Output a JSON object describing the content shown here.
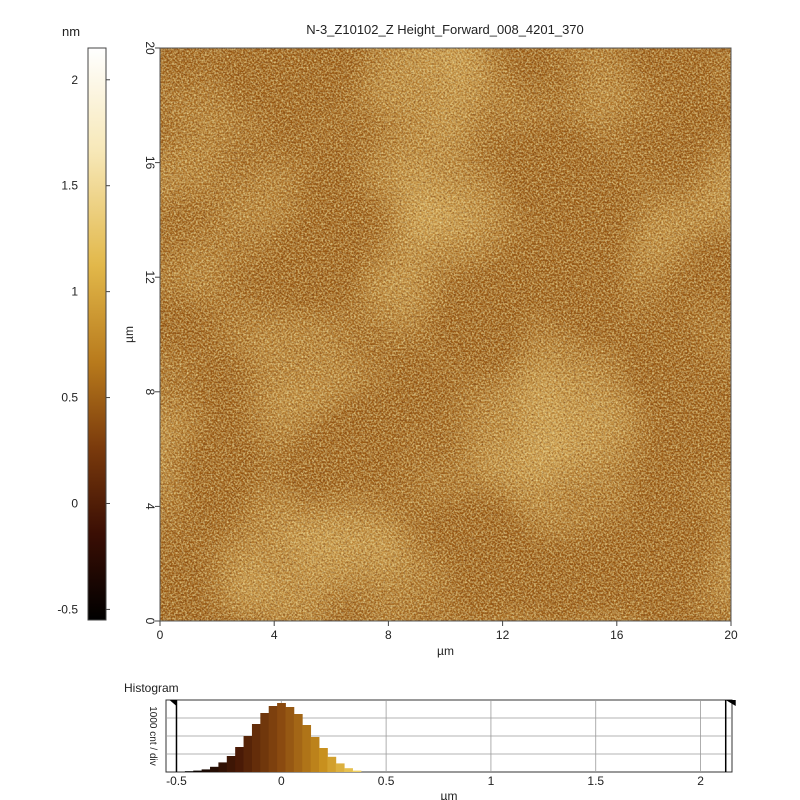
{
  "chart_data": [
    {
      "type": "heatmap",
      "title": "N-3_Z10102_Z Height_Forward_008_4201_370",
      "xlabel": "µm",
      "ylabel": "µm",
      "x_ticks": [
        "0",
        "4",
        "8",
        "12",
        "16",
        "20"
      ],
      "y_ticks": [
        "0",
        "4",
        "8",
        "12",
        "16",
        "20"
      ],
      "xlim": [
        0,
        20
      ],
      "ylim": [
        0,
        20
      ],
      "colorbar": {
        "unit": "nm",
        "range": [
          -0.55,
          2.15
        ],
        "ticks": [
          "-0.5",
          "0",
          "0.5",
          "1",
          "1.5",
          "2"
        ],
        "tick_values": [
          -0.5,
          0,
          0.5,
          1,
          1.5,
          2
        ],
        "colormap": [
          "#000000",
          "#3a0e04",
          "#7a3a0c",
          "#b87a1c",
          "#e2b84a",
          "#f7e8b8",
          "#ffffff"
        ]
      },
      "surface_colors": {
        "dark": "#5a2a08",
        "mid": "#9a5a14",
        "light": "#d8a030",
        "highlight": "#f2d070"
      }
    },
    {
      "type": "bar",
      "title": "Histogram",
      "ylabel": "1000 cnt / div",
      "xlabel": "µm",
      "x_ticks": [
        "-0.5",
        "0",
        "0.5",
        "1",
        "1.5",
        "2"
      ],
      "xlim": [
        -0.55,
        2.15
      ],
      "bin_centers": [
        -0.44,
        -0.4,
        -0.36,
        -0.32,
        -0.28,
        -0.24,
        -0.2,
        -0.16,
        -0.12,
        -0.08,
        -0.04,
        0.0,
        0.04,
        0.08,
        0.12,
        0.16,
        0.2,
        0.24,
        0.28,
        0.32,
        0.36
      ],
      "values": [
        40,
        70,
        130,
        260,
        480,
        800,
        1250,
        1800,
        2400,
        2950,
        3300,
        3450,
        3250,
        2900,
        2350,
        1750,
        1200,
        760,
        430,
        190,
        70
      ],
      "ylim": [
        0,
        3600
      ],
      "marker_left": -0.5,
      "marker_right": 2.12
    }
  ]
}
